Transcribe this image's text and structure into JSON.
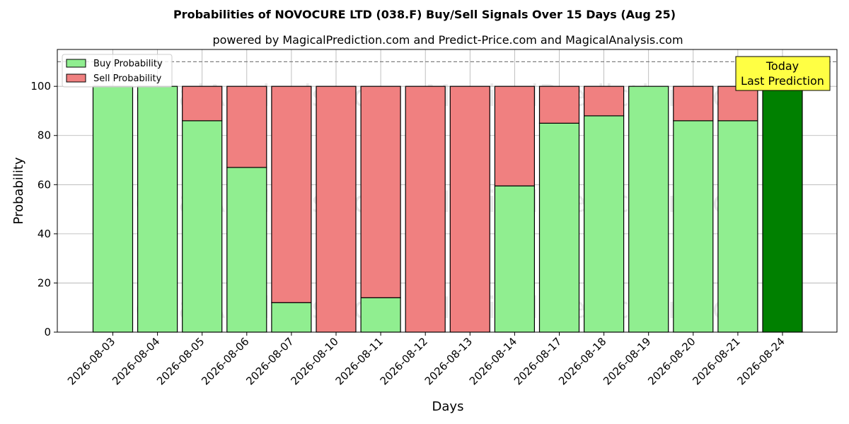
{
  "chart_data": {
    "type": "bar",
    "stacked": true,
    "title": "Probabilities of NOVOCURE LTD (038.F) Buy/Sell Signals Over 15 Days (Aug 25)",
    "subtitle": "powered by MagicalPrediction.com and Predict-Price.com and MagicalAnalysis.com",
    "xlabel": "Days",
    "ylabel": "Probability",
    "ylim": [
      0,
      115
    ],
    "yticks": [
      0,
      20,
      40,
      60,
      80,
      100
    ],
    "reference_line": 110,
    "grid": true,
    "legend_placement": "top-left",
    "categories": [
      "2026-08-03",
      "2026-08-04",
      "2026-08-05",
      "2026-08-06",
      "2026-08-07",
      "2026-08-10",
      "2026-08-11",
      "2026-08-12",
      "2026-08-13",
      "2026-08-14",
      "2026-08-17",
      "2026-08-18",
      "2026-08-19",
      "2026-08-20",
      "2026-08-21",
      "2026-08-24"
    ],
    "series": [
      {
        "name": "Buy Probability",
        "color": "#90ee90",
        "values": [
          100,
          100,
          86,
          67,
          12,
          0,
          14,
          0,
          0,
          59.5,
          85,
          88,
          100,
          86,
          86,
          100
        ]
      },
      {
        "name": "Sell Probability",
        "color": "#f08080",
        "values": [
          0,
          0,
          14,
          33,
          88,
          100,
          86,
          100,
          100,
          40.5,
          15,
          12,
          0,
          14,
          14,
          0
        ]
      }
    ],
    "highlight": {
      "index": 15,
      "color": "#008000"
    },
    "annotation": {
      "line1": "Today",
      "line2": "Last Prediction",
      "background": "#ffff44"
    },
    "watermarks": [
      "MagicalAnalysis.com",
      "MagicalPrediction.com"
    ]
  }
}
